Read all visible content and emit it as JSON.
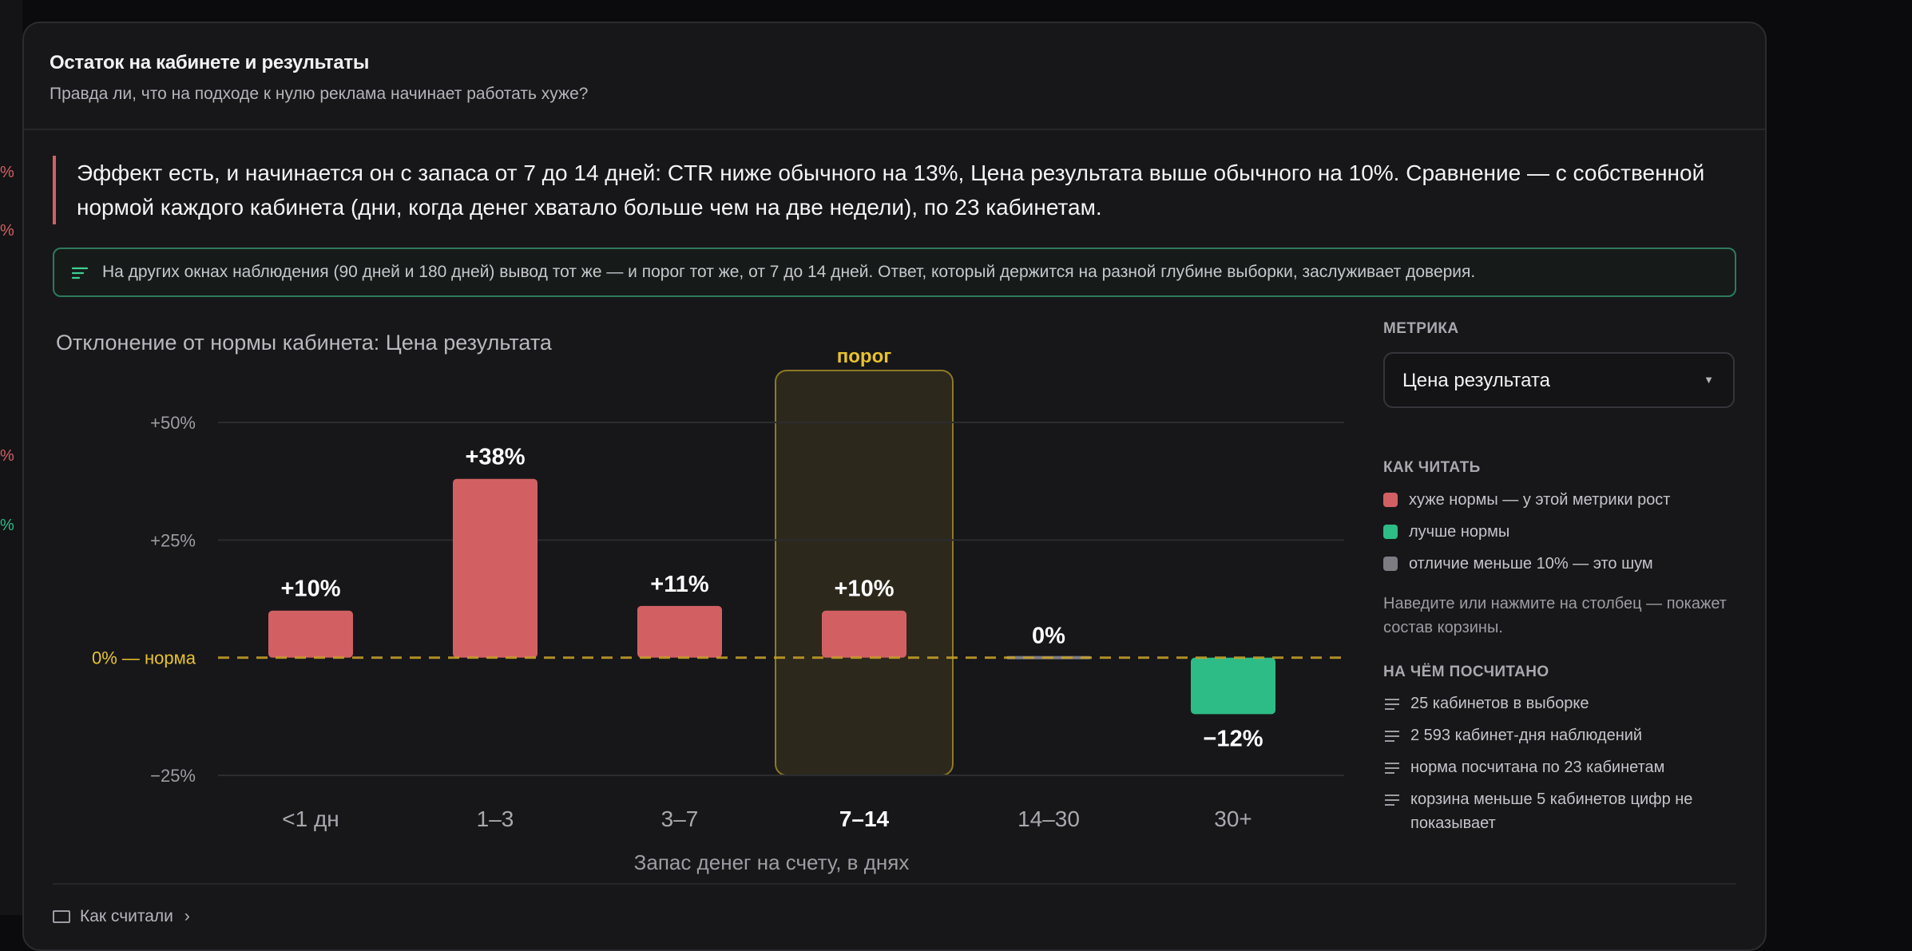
{
  "left_strip": [
    {
      "text": "%",
      "color": "#d26063"
    },
    {
      "text": "%",
      "color": "#d26063"
    },
    {
      "text": "%",
      "color": "#d26063"
    },
    {
      "text": "%",
      "color": "#2ebc86"
    }
  ],
  "header": {
    "title": "Остаток на кабинете и результаты",
    "subtitle": "Правда ли, что на подходе к нулю реклама начинает работать хуже?"
  },
  "lead": "Эффект есть, и начинается он с запаса от 7 до 14 дней: CTR ниже обычного на 13%, Цена результата выше обычного на 10%. Сравнение — с собственной нормой каждого кабинета (дни, когда денег хватало больше чем на две недели), по 23 кабинетам.",
  "note": {
    "icon": "filter-lines-icon",
    "text": "На других окнах наблюдения (90 дней и 180 дней) вывод тот же — и порог тот же, от 7 до 14 дней. Ответ, который держится на разной глубине выборки, заслуживает доверия."
  },
  "chart_data": {
    "type": "bar",
    "title": "Отклонение от нормы кабинета: Цена результата",
    "xlabel": "Запас денег на счету, в днях",
    "ylabel": "",
    "categories": [
      "<1 дн",
      "1–3",
      "3–7",
      "7–14",
      "14–30",
      "30+"
    ],
    "values": [
      10,
      38,
      11,
      10,
      0,
      -12
    ],
    "data_labels": [
      "+10%",
      "+38%",
      "+11%",
      "+10%",
      "0%",
      "−12%"
    ],
    "bar_status": [
      "worse",
      "worse",
      "worse",
      "worse",
      "noise",
      "better"
    ],
    "ylim": [
      -25,
      50
    ],
    "yticks": [
      {
        "value": 50,
        "label": "+50%"
      },
      {
        "value": 25,
        "label": "+25%"
      },
      {
        "value": -25,
        "label": "−25%"
      }
    ],
    "baseline": {
      "value": 0,
      "label": "0% — норма"
    },
    "threshold": {
      "category": "7–14",
      "label": "порог"
    },
    "highlight_category": "7–14",
    "grid": true,
    "colors": {
      "worse": "#d26063",
      "better": "#2ebc86",
      "noise": "#7c7c82",
      "baseline": "#c9a227",
      "threshold": "#e8c22e"
    }
  },
  "sidebar": {
    "metric_label": "МЕТРИКА",
    "metric_value": "Цена результата",
    "metric_arrow": "▼",
    "howto_label": "КАК ЧИТАТЬ",
    "legend": [
      {
        "color": "#d26063",
        "text": "хуже нормы — у этой метрики рост"
      },
      {
        "color": "#2ebc86",
        "text": "лучше нормы"
      },
      {
        "color": "#7c7c82",
        "text": "отличие меньше 10% — это шум"
      }
    ],
    "hint": "Наведите или нажмите на столбец — покажет состав корзины.",
    "basis_label": "НА ЧЁМ ПОСЧИТАНО",
    "stats": [
      "25 кабинетов в выборке",
      "2 593 кабинет-дня наблюдений",
      "норма посчитана по 23 кабинетам",
      "корзина меньше 5 кабинетов цифр не показывает"
    ]
  },
  "footer": {
    "link": "Как считали",
    "arrow": "›"
  }
}
